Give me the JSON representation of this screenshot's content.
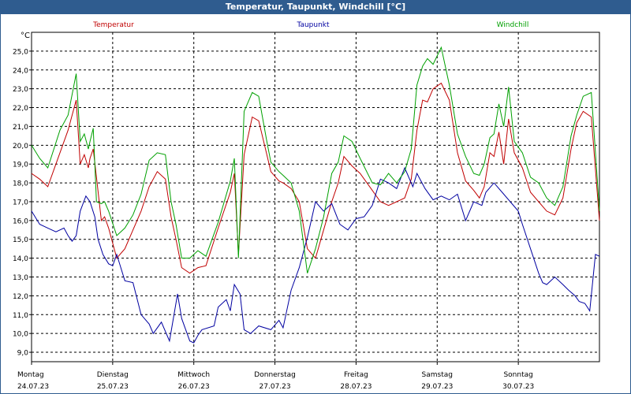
{
  "window": {
    "title": "Temperatur, Taupunkt, Windchill [°C]"
  },
  "chart_data": {
    "type": "line",
    "title": "Temperatur, Taupunkt, Windchill [°C]",
    "ylabel": "°C",
    "ylim": [
      8.5,
      26.0
    ],
    "xlim": [
      0,
      7
    ],
    "grid": true,
    "yticks": [
      9.0,
      10.0,
      11.0,
      12.0,
      13.0,
      14.0,
      15.0,
      16.0,
      17.0,
      18.0,
      19.0,
      20.0,
      21.0,
      22.0,
      23.0,
      24.0,
      25.0
    ],
    "ytick_labels": [
      "9,0",
      "10,0",
      "11,0",
      "12,0",
      "13,0",
      "14,0",
      "15,0",
      "16,0",
      "17,0",
      "18,0",
      "19,0",
      "20,0",
      "21,0",
      "22,0",
      "23,0",
      "24,0",
      "25,0"
    ],
    "x_labels": [
      {
        "day": "Montag",
        "date": "24.07.23"
      },
      {
        "day": "Dienstag",
        "date": "25.07.23"
      },
      {
        "day": "Mittwoch",
        "date": "26.07.23"
      },
      {
        "day": "Donnerstag",
        "date": "27.07.23"
      },
      {
        "day": "Freitag",
        "date": "28.07.23"
      },
      {
        "day": "Samstag",
        "date": "29.07.23"
      },
      {
        "day": "Sonntag",
        "date": "30.07.23"
      }
    ],
    "series": [
      {
        "name": "Temperatur",
        "color": "#c00000",
        "x": [
          0,
          0.1,
          0.2,
          0.35,
          0.45,
          0.55,
          0.6,
          0.65,
          0.7,
          0.72,
          0.76,
          0.8,
          0.86,
          0.9,
          0.95,
          1.05,
          1.15,
          1.25,
          1.35,
          1.45,
          1.55,
          1.65,
          1.72,
          1.78,
          1.85,
          1.95,
          2.05,
          2.15,
          2.3,
          2.45,
          2.5,
          2.55,
          2.62,
          2.72,
          2.8,
          2.9,
          2.95,
          3.05,
          3.1,
          3.2,
          3.3,
          3.4,
          3.5,
          3.6,
          3.7,
          3.78,
          3.85,
          3.95,
          4.05,
          4.2,
          4.3,
          4.4,
          4.5,
          4.6,
          4.68,
          4.75,
          4.82,
          4.88,
          4.95,
          5.05,
          5.15,
          5.25,
          5.35,
          5.45,
          5.52,
          5.58,
          5.65,
          5.7,
          5.76,
          5.82,
          5.88,
          5.95,
          6.05,
          6.15,
          6.25,
          6.35,
          6.45,
          6.55,
          6.65,
          6.72,
          6.8,
          6.9,
          7.0
        ],
        "values": [
          18.5,
          18.2,
          17.8,
          19.6,
          20.8,
          22.4,
          19.0,
          19.5,
          18.8,
          19.3,
          19.8,
          18.3,
          16.0,
          16.2,
          15.6,
          14.0,
          14.5,
          15.5,
          16.5,
          17.8,
          18.6,
          18.2,
          16.2,
          15.0,
          13.5,
          13.2,
          13.5,
          13.6,
          15.6,
          17.5,
          18.5,
          14.2,
          19.5,
          21.5,
          21.3,
          19.5,
          18.6,
          18.1,
          18.0,
          17.7,
          17.0,
          14.5,
          14.0,
          15.5,
          17.0,
          18.0,
          19.4,
          18.9,
          18.5,
          17.6,
          17.0,
          16.8,
          17.0,
          17.2,
          18.2,
          20.8,
          22.4,
          22.3,
          23.0,
          23.3,
          22.4,
          19.6,
          18.1,
          17.6,
          17.2,
          17.8,
          19.6,
          19.4,
          20.7,
          19.0,
          21.4,
          19.6,
          18.8,
          17.5,
          17.0,
          16.5,
          16.3,
          17.2,
          19.8,
          21.2,
          21.8,
          21.5,
          16.0
        ]
      },
      {
        "name": "Taupunkt",
        "color": "#0000a0",
        "x": [
          0,
          0.1,
          0.2,
          0.3,
          0.4,
          0.45,
          0.5,
          0.55,
          0.6,
          0.67,
          0.72,
          0.78,
          0.82,
          0.88,
          0.95,
          1.0,
          1.05,
          1.15,
          1.25,
          1.35,
          1.45,
          1.5,
          1.6,
          1.7,
          1.8,
          1.85,
          1.95,
          2.0,
          2.05,
          2.1,
          2.25,
          2.3,
          2.4,
          2.45,
          2.5,
          2.57,
          2.62,
          2.7,
          2.8,
          2.95,
          3.05,
          3.1,
          3.2,
          3.3,
          3.4,
          3.5,
          3.6,
          3.7,
          3.8,
          3.9,
          4.0,
          4.1,
          4.2,
          4.3,
          4.4,
          4.5,
          4.6,
          4.7,
          4.75,
          4.85,
          4.95,
          5.05,
          5.15,
          5.25,
          5.35,
          5.45,
          5.55,
          5.6,
          5.7,
          5.8,
          5.9,
          6.0,
          6.05,
          6.15,
          6.25,
          6.3,
          6.35,
          6.45,
          6.55,
          6.62,
          6.7,
          6.75,
          6.82,
          6.88,
          6.95,
          7.0
        ],
        "values": [
          16.5,
          15.8,
          15.6,
          15.4,
          15.6,
          15.2,
          14.9,
          15.2,
          16.5,
          17.3,
          17.0,
          16.2,
          15.0,
          14.2,
          13.7,
          13.6,
          14.2,
          12.8,
          12.7,
          11.0,
          10.5,
          10.0,
          10.6,
          9.6,
          12.1,
          10.8,
          9.6,
          9.5,
          9.9,
          10.2,
          10.4,
          11.4,
          11.8,
          11.2,
          12.6,
          12.1,
          10.2,
          10.0,
          10.4,
          10.2,
          10.7,
          10.3,
          12.3,
          13.5,
          15.1,
          17.0,
          16.5,
          16.9,
          15.8,
          15.5,
          16.1,
          16.2,
          16.8,
          18.2,
          18.0,
          17.7,
          18.8,
          17.8,
          18.5,
          17.7,
          17.1,
          17.3,
          17.1,
          17.4,
          16.0,
          17.0,
          16.8,
          17.5,
          18.0,
          17.5,
          17.0,
          16.5,
          15.8,
          14.5,
          13.2,
          12.7,
          12.6,
          13.0,
          12.6,
          12.3,
          12.0,
          11.7,
          11.6,
          11.2,
          14.2,
          14.1
        ]
      },
      {
        "name": "Windchill",
        "color": "#00a000",
        "x": [
          0,
          0.1,
          0.2,
          0.35,
          0.45,
          0.55,
          0.6,
          0.65,
          0.7,
          0.72,
          0.76,
          0.8,
          0.86,
          0.9,
          0.95,
          1.05,
          1.15,
          1.25,
          1.35,
          1.45,
          1.55,
          1.65,
          1.72,
          1.78,
          1.85,
          1.95,
          2.05,
          2.15,
          2.3,
          2.45,
          2.5,
          2.55,
          2.62,
          2.72,
          2.8,
          2.9,
          2.95,
          3.05,
          3.1,
          3.2,
          3.3,
          3.4,
          3.5,
          3.6,
          3.7,
          3.78,
          3.85,
          3.95,
          4.05,
          4.2,
          4.3,
          4.4,
          4.5,
          4.6,
          4.68,
          4.75,
          4.82,
          4.88,
          4.95,
          5.05,
          5.15,
          5.25,
          5.35,
          5.45,
          5.52,
          5.58,
          5.65,
          5.7,
          5.76,
          5.82,
          5.88,
          5.95,
          6.05,
          6.15,
          6.25,
          6.35,
          6.45,
          6.55,
          6.65,
          6.72,
          6.8,
          6.9,
          7.0
        ],
        "values": [
          20.0,
          19.3,
          18.8,
          20.8,
          21.6,
          23.8,
          20.2,
          20.6,
          19.8,
          20.2,
          20.9,
          17.0,
          16.9,
          17.0,
          16.5,
          15.2,
          15.6,
          16.3,
          17.4,
          19.2,
          19.6,
          19.5,
          17.0,
          15.8,
          14.0,
          14.0,
          14.4,
          14.1,
          15.9,
          18.1,
          19.3,
          14.0,
          21.8,
          22.8,
          22.6,
          20.2,
          19.1,
          18.6,
          18.4,
          18.0,
          16.5,
          13.2,
          14.5,
          16.2,
          18.5,
          19.1,
          20.5,
          20.2,
          19.3,
          18.0,
          17.9,
          18.5,
          18.0,
          18.6,
          19.8,
          23.2,
          24.2,
          24.6,
          24.3,
          25.2,
          23.2,
          20.6,
          19.4,
          18.5,
          18.4,
          19.0,
          20.4,
          20.6,
          22.2,
          21.0,
          23.1,
          20.2,
          19.6,
          18.3,
          18.0,
          17.2,
          16.8,
          17.8,
          20.5,
          21.6,
          22.6,
          22.8,
          16.5
        ]
      }
    ]
  }
}
